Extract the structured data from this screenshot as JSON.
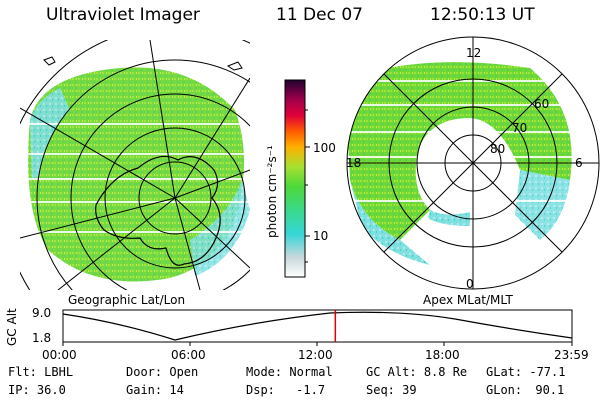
{
  "header": {
    "title": "Ultraviolet Imager",
    "date": "11 Dec 07",
    "time": "12:50:13 UT"
  },
  "colorbar": {
    "unit_label": "photon cm⁻²s⁻¹",
    "ticks": [
      "100",
      "10"
    ]
  },
  "left_panel": {
    "caption": "Geographic Lat/Lon"
  },
  "right_panel": {
    "caption": "Apex MLat/MLT",
    "lat_labels": [
      "60",
      "70",
      "80"
    ],
    "mlt_labels": {
      "top": "12",
      "left": "18",
      "right": "6",
      "bottom": "0"
    }
  },
  "timeline": {
    "ylabel": "GC Alt",
    "ymax": "9.0",
    "ymin": "1.8",
    "time_ticks": [
      "00:00",
      "06:00",
      "12:00",
      "18:00",
      "23:59"
    ],
    "current_time_fraction": 0.535
  },
  "params": {
    "flt": {
      "label": "Flt:",
      "value": "LBHL"
    },
    "ip": {
      "label": "IP:",
      "value": "36.0"
    },
    "door": {
      "label": "Door:",
      "value": "Open"
    },
    "gain": {
      "label": "Gain:",
      "value": "14"
    },
    "mode": {
      "label": "Mode:",
      "value": "Normal"
    },
    "dsp": {
      "label": "Dsp:",
      "value": "-1.7"
    },
    "gcalt": {
      "label": "GC Alt:",
      "value": "8.8 Re"
    },
    "seq": {
      "label": "Seq:",
      "value": "39"
    },
    "glat": {
      "label": "GLat:",
      "value": "-77.1"
    },
    "glon": {
      "label": "GLon:",
      "value": "90.1"
    }
  },
  "colors": {
    "aurora_green": "#6fd832",
    "aurora_cyan": "#5ed8d8",
    "timeline_marker": "#e00000"
  }
}
